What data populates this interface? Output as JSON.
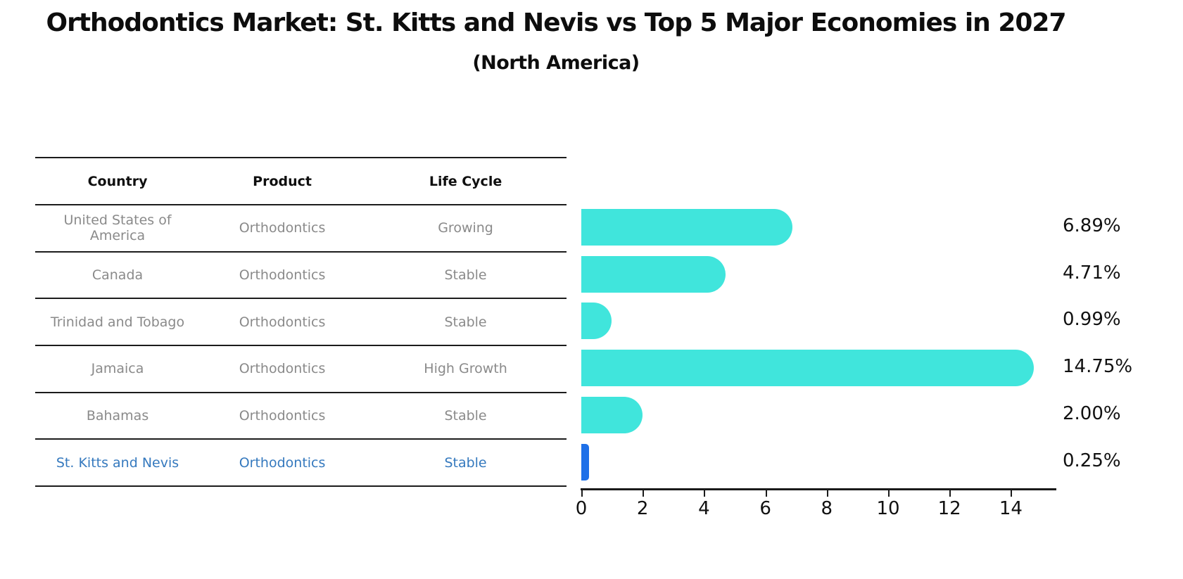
{
  "title": "Orthodontics Market: St. Kitts and Nevis vs Top 5 Major Economies in 2027",
  "subtitle": "(North America)",
  "table": {
    "headers": [
      "Country",
      "Product",
      "Life Cycle"
    ],
    "rows": [
      {
        "country": "United States of America",
        "product": "Orthodontics",
        "life_cycle": "Growing",
        "highlight": false
      },
      {
        "country": "Canada",
        "product": "Orthodontics",
        "life_cycle": "Stable",
        "highlight": false
      },
      {
        "country": "Trinidad and Tobago",
        "product": "Orthodontics",
        "life_cycle": "Stable",
        "highlight": false
      },
      {
        "country": "Jamaica",
        "product": "Orthodontics",
        "life_cycle": "High Growth",
        "highlight": false
      },
      {
        "country": "Bahamas",
        "product": "Orthodontics",
        "life_cycle": "Stable",
        "highlight": false
      },
      {
        "country": "St. Kitts and Nevis",
        "product": "Orthodontics",
        "life_cycle": "Stable",
        "highlight": true
      }
    ]
  },
  "chart_data": {
    "type": "bar",
    "orientation": "horizontal",
    "title": "Orthodontics Market: St. Kitts and Nevis vs Top 5 Major Economies in 2027",
    "subtitle": "(North America)",
    "categories": [
      "United States of America",
      "Canada",
      "Trinidad and Tobago",
      "Jamaica",
      "Bahamas",
      "St. Kitts and Nevis"
    ],
    "values": [
      6.89,
      4.71,
      0.99,
      14.75,
      2.0,
      0.25
    ],
    "value_labels": [
      "6.89%",
      "4.71%",
      "0.99%",
      "14.75%",
      "2.00%",
      "0.25%"
    ],
    "xlim": [
      0,
      15.5
    ],
    "xticks": [
      0,
      2,
      4,
      6,
      8,
      10,
      12,
      14
    ],
    "grid": false,
    "legend": "none",
    "bar_color": "#40e5dc",
    "highlight_bar_color": "#1e70e8",
    "highlight_index": 5
  },
  "colors": {
    "background": "#ffffff",
    "text_dark": "#0d0d0d",
    "text_gray": "#8a8a8a",
    "highlight_text": "#3579be",
    "axis": "#1a1a1a"
  }
}
